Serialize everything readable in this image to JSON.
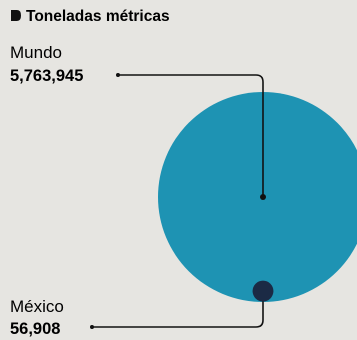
{
  "chart_data": {
    "type": "bubble",
    "title": "Toneladas métricas",
    "items": [
      {
        "label": "Mundo",
        "value": 5763945,
        "value_label": "5,763,945",
        "color": "#1e93b3"
      },
      {
        "label": "México",
        "value": 56908,
        "value_label": "56,908",
        "color": "#1b2a45"
      }
    ]
  },
  "colors": {
    "leader": "#111111",
    "background": "#e6e5e1"
  }
}
